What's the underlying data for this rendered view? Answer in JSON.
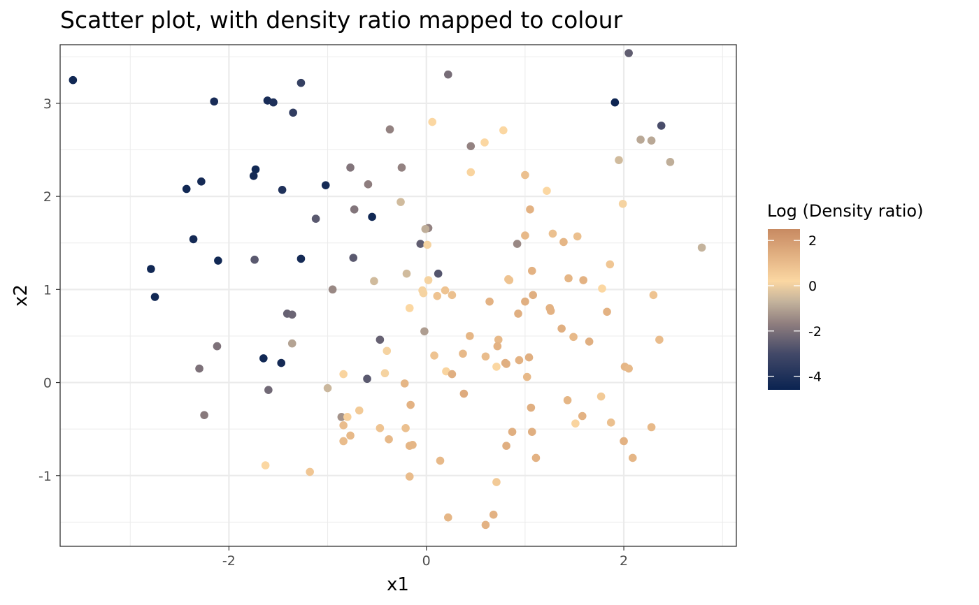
{
  "chart_data": {
    "type": "scatter",
    "title": "Scatter plot, with density ratio mapped to colour",
    "xlabel": "x1",
    "ylabel": "x2",
    "xlim": [
      -3.71,
      3.14
    ],
    "ylim": [
      -1.76,
      3.63
    ],
    "x_ticks": [
      -2,
      0,
      2
    ],
    "x_tick_labels": [
      "-2",
      "0",
      "2"
    ],
    "y_ticks": [
      -1,
      0,
      1,
      2,
      3
    ],
    "y_tick_labels": [
      "-1",
      "0",
      "1",
      "2",
      "3"
    ],
    "grid": true,
    "legend": {
      "title": "Log (Density ratio)",
      "placement": "right",
      "ticks": [
        2,
        0,
        -2,
        -4
      ],
      "tick_labels": [
        "2",
        "0",
        "-2",
        "-4"
      ],
      "range": [
        -4.6,
        2.5
      ],
      "colors": {
        "low": "#0a2351",
        "mid_low": "#434968",
        "mid": "#8e7d7e",
        "mid_high": "#c4b39c",
        "zero": "#fbd7a2",
        "high": "#c88a62"
      }
    },
    "points": [
      {
        "x": -3.58,
        "y": 3.25,
        "c": -4.4
      },
      {
        "x": -2.15,
        "y": 3.02,
        "c": -4.2
      },
      {
        "x": -1.61,
        "y": 3.03,
        "c": -4.2
      },
      {
        "x": -1.55,
        "y": 3.01,
        "c": -4.0
      },
      {
        "x": -1.27,
        "y": 3.22,
        "c": -3.4
      },
      {
        "x": -1.35,
        "y": 2.9,
        "c": -3.5
      },
      {
        "x": -1.73,
        "y": 2.29,
        "c": -4.4
      },
      {
        "x": -1.75,
        "y": 2.22,
        "c": -4.3
      },
      {
        "x": -2.28,
        "y": 2.16,
        "c": -4.3
      },
      {
        "x": -2.43,
        "y": 2.08,
        "c": -4.4
      },
      {
        "x": -1.46,
        "y": 2.07,
        "c": -4.0
      },
      {
        "x": -1.02,
        "y": 2.12,
        "c": -4.3
      },
      {
        "x": -0.55,
        "y": 1.78,
        "c": -4.4
      },
      {
        "x": -2.36,
        "y": 1.54,
        "c": -4.3
      },
      {
        "x": -2.11,
        "y": 1.31,
        "c": -4.4
      },
      {
        "x": -1.27,
        "y": 1.33,
        "c": -4.3
      },
      {
        "x": -2.79,
        "y": 1.22,
        "c": -4.4
      },
      {
        "x": -2.75,
        "y": 0.92,
        "c": -4.4
      },
      {
        "x": -1.65,
        "y": 0.26,
        "c": -4.4
      },
      {
        "x": -1.47,
        "y": 0.21,
        "c": -4.3
      },
      {
        "x": 1.91,
        "y": 3.01,
        "c": -4.5
      },
      {
        "x": 2.38,
        "y": 2.76,
        "c": -2.9
      },
      {
        "x": 2.05,
        "y": 3.54,
        "c": -2.5
      },
      {
        "x": -1.74,
        "y": 1.32,
        "c": -2.6
      },
      {
        "x": -0.74,
        "y": 1.34,
        "c": -2.6
      },
      {
        "x": -1.12,
        "y": 1.76,
        "c": -2.6
      },
      {
        "x": -0.47,
        "y": 0.46,
        "c": -2.4
      },
      {
        "x": -1.41,
        "y": 0.74,
        "c": -2.4
      },
      {
        "x": -1.36,
        "y": 0.73,
        "c": -2.3
      },
      {
        "x": -2.12,
        "y": 0.39,
        "c": -2.0
      },
      {
        "x": -2.3,
        "y": 0.15,
        "c": -2.0
      },
      {
        "x": -2.25,
        "y": -0.35,
        "c": -1.8
      },
      {
        "x": -1.6,
        "y": -0.08,
        "c": -2.2
      },
      {
        "x": -0.6,
        "y": 0.04,
        "c": -2.6
      },
      {
        "x": -0.06,
        "y": 1.49,
        "c": -2.5
      },
      {
        "x": 0.12,
        "y": 1.17,
        "c": -2.7
      },
      {
        "x": 0.22,
        "y": 3.31,
        "c": -2.1
      },
      {
        "x": -0.77,
        "y": 2.31,
        "c": -1.9
      },
      {
        "x": -0.73,
        "y": 1.86,
        "c": -1.9
      },
      {
        "x": -0.59,
        "y": 2.13,
        "c": -1.7
      },
      {
        "x": -0.37,
        "y": 2.72,
        "c": -1.6
      },
      {
        "x": -0.25,
        "y": 2.31,
        "c": -1.6
      },
      {
        "x": 0.45,
        "y": 2.54,
        "c": -1.6
      },
      {
        "x": 0.92,
        "y": 1.49,
        "c": -1.5
      },
      {
        "x": 0.02,
        "y": 1.66,
        "c": -1.6
      },
      {
        "x": -0.95,
        "y": 1.0,
        "c": -1.5
      },
      {
        "x": -0.86,
        "y": -0.37,
        "c": -1.3
      },
      {
        "x": -0.02,
        "y": 0.55,
        "c": -1.1
      },
      {
        "x": -1.36,
        "y": 0.42,
        "c": -1.0
      },
      {
        "x": 2.17,
        "y": 2.61,
        "c": -0.9
      },
      {
        "x": 2.28,
        "y": 2.6,
        "c": -0.9
      },
      {
        "x": 2.47,
        "y": 2.37,
        "c": -0.8
      },
      {
        "x": 2.79,
        "y": 1.45,
        "c": -0.7
      },
      {
        "x": 1.95,
        "y": 2.39,
        "c": -0.5
      },
      {
        "x": -0.26,
        "y": 1.94,
        "c": -0.5
      },
      {
        "x": -0.53,
        "y": 1.09,
        "c": -0.5
      },
      {
        "x": -0.2,
        "y": 1.17,
        "c": -0.5
      },
      {
        "x": -0.01,
        "y": 1.65,
        "c": -0.8
      },
      {
        "x": -1.0,
        "y": -0.06,
        "c": -0.6
      },
      {
        "x": -0.8,
        "y": -0.37,
        "c": 0.4
      },
      {
        "x": 0.06,
        "y": 2.8,
        "c": 0.2
      },
      {
        "x": 0.59,
        "y": 2.58,
        "c": 0.2
      },
      {
        "x": 0.78,
        "y": 2.71,
        "c": 0.2
      },
      {
        "x": 0.45,
        "y": 2.26,
        "c": 0.3
      },
      {
        "x": 1.22,
        "y": 2.06,
        "c": 0.2
      },
      {
        "x": 1.99,
        "y": 1.92,
        "c": 0.1
      },
      {
        "x": 1.0,
        "y": 2.23,
        "c": 0.9
      },
      {
        "x": 1.05,
        "y": 1.86,
        "c": 1.3
      },
      {
        "x": 0.01,
        "y": 1.48,
        "c": 0.1
      },
      {
        "x": 1.28,
        "y": 1.6,
        "c": 0.9
      },
      {
        "x": 1.0,
        "y": 1.58,
        "c": 1.1
      },
      {
        "x": 1.39,
        "y": 1.51,
        "c": 1.2
      },
      {
        "x": 1.53,
        "y": 1.57,
        "c": 0.9
      },
      {
        "x": 1.86,
        "y": 1.27,
        "c": 0.7
      },
      {
        "x": 1.07,
        "y": 1.2,
        "c": 1.3
      },
      {
        "x": 0.02,
        "y": 1.1,
        "c": 0.1
      },
      {
        "x": 0.84,
        "y": 1.1,
        "c": 0.8
      },
      {
        "x": 0.83,
        "y": 1.11,
        "c": 0.8
      },
      {
        "x": 1.44,
        "y": 1.12,
        "c": 1.2
      },
      {
        "x": 1.59,
        "y": 1.1,
        "c": 1.3
      },
      {
        "x": 1.78,
        "y": 1.01,
        "c": 0.2
      },
      {
        "x": -0.04,
        "y": 0.99,
        "c": 0.1
      },
      {
        "x": -0.03,
        "y": 0.96,
        "c": 0.1
      },
      {
        "x": 0.19,
        "y": 0.99,
        "c": 0.8
      },
      {
        "x": 0.11,
        "y": 0.93,
        "c": 0.8
      },
      {
        "x": 0.26,
        "y": 0.94,
        "c": 0.9
      },
      {
        "x": 1.08,
        "y": 0.94,
        "c": 1.4
      },
      {
        "x": 0.64,
        "y": 0.87,
        "c": 1.3
      },
      {
        "x": 1.0,
        "y": 0.87,
        "c": 1.4
      },
      {
        "x": 2.3,
        "y": 0.94,
        "c": 0.8
      },
      {
        "x": -0.17,
        "y": 0.8,
        "c": 0.2
      },
      {
        "x": 1.25,
        "y": 0.8,
        "c": 1.3
      },
      {
        "x": 1.26,
        "y": 0.77,
        "c": 1.3
      },
      {
        "x": 0.93,
        "y": 0.74,
        "c": 1.4
      },
      {
        "x": 1.83,
        "y": 0.76,
        "c": 1.3
      },
      {
        "x": 1.37,
        "y": 0.58,
        "c": 1.4
      },
      {
        "x": 0.44,
        "y": 0.5,
        "c": 1.2
      },
      {
        "x": 1.49,
        "y": 0.49,
        "c": 1.1
      },
      {
        "x": 0.73,
        "y": 0.46,
        "c": 1.1
      },
      {
        "x": 1.65,
        "y": 0.44,
        "c": 1.4
      },
      {
        "x": 2.36,
        "y": 0.46,
        "c": 1.0
      },
      {
        "x": 0.72,
        "y": 0.39,
        "c": 1.3
      },
      {
        "x": -0.4,
        "y": 0.34,
        "c": 0.1
      },
      {
        "x": 0.37,
        "y": 0.31,
        "c": 1.1
      },
      {
        "x": 0.08,
        "y": 0.29,
        "c": 0.8
      },
      {
        "x": 0.6,
        "y": 0.28,
        "c": 1.0
      },
      {
        "x": 1.04,
        "y": 0.27,
        "c": 1.4
      },
      {
        "x": 0.94,
        "y": 0.24,
        "c": 1.3
      },
      {
        "x": 0.8,
        "y": 0.21,
        "c": 1.4
      },
      {
        "x": 0.81,
        "y": 0.2,
        "c": 1.4
      },
      {
        "x": 0.71,
        "y": 0.17,
        "c": 0.2
      },
      {
        "x": 2.01,
        "y": 0.17,
        "c": 1.2
      },
      {
        "x": 2.05,
        "y": 0.15,
        "c": 1.1
      },
      {
        "x": -0.84,
        "y": 0.09,
        "c": 0.3
      },
      {
        "x": -0.42,
        "y": 0.1,
        "c": 0.1
      },
      {
        "x": 0.2,
        "y": 0.12,
        "c": 0.3
      },
      {
        "x": 0.26,
        "y": 0.09,
        "c": 1.4
      },
      {
        "x": 1.02,
        "y": 0.06,
        "c": 1.1
      },
      {
        "x": -0.22,
        "y": -0.01,
        "c": 1.2
      },
      {
        "x": 0.38,
        "y": -0.12,
        "c": 1.5
      },
      {
        "x": 1.77,
        "y": -0.15,
        "c": 0.6
      },
      {
        "x": -0.16,
        "y": -0.24,
        "c": 1.3
      },
      {
        "x": 1.06,
        "y": -0.27,
        "c": 1.4
      },
      {
        "x": 1.43,
        "y": -0.19,
        "c": 1.2
      },
      {
        "x": -0.68,
        "y": -0.3,
        "c": 0.6
      },
      {
        "x": 1.58,
        "y": -0.36,
        "c": 1.3
      },
      {
        "x": -0.84,
        "y": -0.46,
        "c": 1.0
      },
      {
        "x": -0.47,
        "y": -0.49,
        "c": 0.8
      },
      {
        "x": -0.21,
        "y": -0.49,
        "c": 0.9
      },
      {
        "x": 1.51,
        "y": -0.44,
        "c": 0.3
      },
      {
        "x": 1.87,
        "y": -0.43,
        "c": 0.9
      },
      {
        "x": 2.28,
        "y": -0.48,
        "c": 1.1
      },
      {
        "x": 0.87,
        "y": -0.53,
        "c": 1.4
      },
      {
        "x": 1.07,
        "y": -0.53,
        "c": 1.4
      },
      {
        "x": -0.77,
        "y": -0.57,
        "c": 1.1
      },
      {
        "x": -0.38,
        "y": -0.61,
        "c": 1.1
      },
      {
        "x": -0.84,
        "y": -0.63,
        "c": 1.0
      },
      {
        "x": -0.14,
        "y": -0.67,
        "c": 1.2
      },
      {
        "x": -0.17,
        "y": -0.68,
        "c": 1.2
      },
      {
        "x": 0.81,
        "y": -0.68,
        "c": 1.4
      },
      {
        "x": 2.0,
        "y": -0.63,
        "c": 1.3
      },
      {
        "x": 1.11,
        "y": -0.81,
        "c": 1.3
      },
      {
        "x": 2.09,
        "y": -0.81,
        "c": 1.2
      },
      {
        "x": 0.14,
        "y": -0.84,
        "c": 1.1
      },
      {
        "x": -1.63,
        "y": -0.89,
        "c": 0.2
      },
      {
        "x": -1.18,
        "y": -0.96,
        "c": 0.7
      },
      {
        "x": -0.17,
        "y": -1.01,
        "c": 1.0
      },
      {
        "x": 0.71,
        "y": -1.07,
        "c": 0.6
      },
      {
        "x": 0.68,
        "y": -1.42,
        "c": 1.3
      },
      {
        "x": 0.22,
        "y": -1.45,
        "c": 1.2
      },
      {
        "x": 0.6,
        "y": -1.53,
        "c": 1.3
      }
    ]
  }
}
